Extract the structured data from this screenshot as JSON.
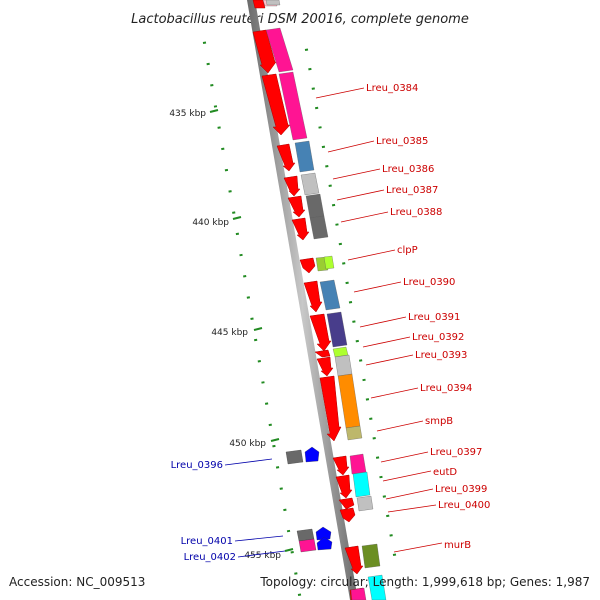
{
  "title": "Lactobacillus reuteri DSM 20016, complete genome",
  "footer": {
    "accession": "Accession: NC_009513",
    "topology": "Topology: circular; Length: 1,999,618 bp; Genes: 1,987"
  },
  "colors": {
    "forward_label": "#cc0000",
    "reverse_label": "#0000aa",
    "backbone": "#8a8a8a",
    "tick": "#228b22",
    "cds_forward": "#ff0000",
    "cds_reverse": "#0000ff"
  },
  "kbp_ticks": [
    "435 kbp",
    "440 kbp",
    "445 kbp",
    "450 kbp",
    "455 kbp"
  ],
  "forward_labels": [
    "Lreu_0384",
    "Lreu_0385",
    "Lreu_0386",
    "Lreu_0387",
    "Lreu_0388",
    "clpP",
    "Lreu_0390",
    "Lreu_0391",
    "Lreu_0392",
    "Lreu_0393",
    "Lreu_0394",
    "smpB",
    "Lreu_0397",
    "eutD",
    "Lreu_0399",
    "Lreu_0400",
    "murB"
  ],
  "reverse_labels": [
    "Lreu_0396",
    "Lreu_0401",
    "Lreu_0402"
  ]
}
